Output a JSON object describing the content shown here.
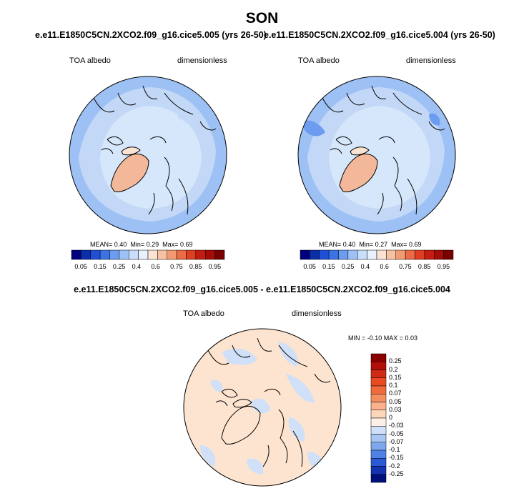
{
  "figure": {
    "season": "SON"
  },
  "panels": [
    {
      "case": "e.e11.E1850C5CN.2XCO2.f09_g16.cice5.005 (yrs 26-50)",
      "field": "TOA albedo",
      "units": "dimensionless",
      "stats": {
        "mean_label": "MEAN=",
        "mean": "0.40",
        "min_label": "Min=",
        "min": "0.29",
        "max_label": "Max=",
        "max": "0.69"
      }
    },
    {
      "case": "e.e11.E1850C5CN.2XCO2.f09_g16.cice5.004 (yrs 26-50)",
      "field": "TOA albedo",
      "units": "dimensionless",
      "stats": {
        "mean_label": "MEAN=",
        "mean": "0.40",
        "min_label": "Min=",
        "min": "0.27",
        "max_label": "Max=",
        "max": "0.69"
      }
    }
  ],
  "colorbar_main": {
    "labels": [
      "0.05",
      "0.15",
      "0.25",
      "0.4",
      "0.6",
      "0.75",
      "0.85",
      "0.95"
    ],
    "colors": [
      "#00007f",
      "#0a2fa8",
      "#1f4fd6",
      "#3a73e6",
      "#6c9cf0",
      "#9ec1f5",
      "#c9defa",
      "#e8f1fc",
      "#fbe3d3",
      "#f7c2a4",
      "#f29a72",
      "#ea6b45",
      "#de3f22",
      "#c41d10",
      "#a30c07",
      "#7a0000"
    ]
  },
  "diff_panel": {
    "title": "e.e11.E1850C5CN.2XCO2.f09_g16.cice5.005 - e.e11.E1850C5CN.2XCO2.f09_g16.cice5.004",
    "field": "TOA albedo",
    "units": "dimensionless",
    "stats_text": "MIN = -0.10 MAX =  0.03"
  },
  "colorbar_diff": {
    "labels": [
      "0.25",
      "0.2",
      "0.15",
      "0.1",
      "0.07",
      "0.05",
      "0.03",
      "0",
      "-0.03",
      "-0.05",
      "-0.07",
      "-0.1",
      "-0.15",
      "-0.2",
      "-0.25"
    ],
    "colors": [
      "#8b0000",
      "#b30f0a",
      "#d02a14",
      "#e84a22",
      "#f06b3c",
      "#f58f62",
      "#f9b28d",
      "#fcd6ba",
      "#fdf0e6",
      "#cfe0f8",
      "#a9c6f3",
      "#7ea8ee",
      "#4f82e6",
      "#2a5ad6",
      "#1533b0",
      "#00107a"
    ]
  },
  "map_colors": {
    "ocean_light": "#d6e6fb",
    "ocean_mid": "#c3d8f6",
    "rim": "#9ec1f5",
    "greenland": "#f3b899",
    "ellesmere": "#fbe3d3",
    "diff_base": "#fde4d0",
    "diff_blue": "#cfe0f8"
  }
}
